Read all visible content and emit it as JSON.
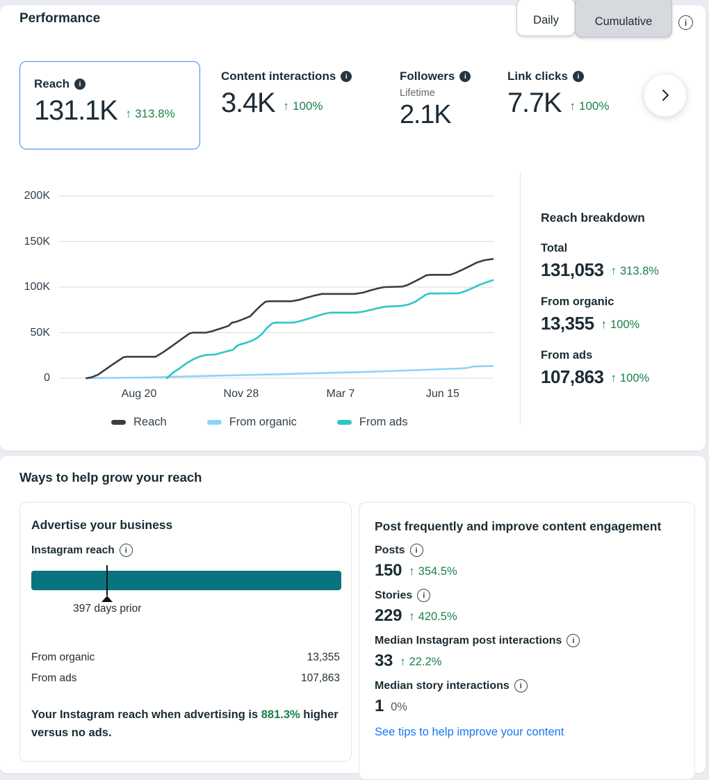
{
  "header": {
    "title": "Performance",
    "toggle": {
      "options": [
        "Daily",
        "Cumulative"
      ],
      "selected": "Cumulative"
    }
  },
  "icons": {
    "arrow_up": "↑",
    "info": "i"
  },
  "colors": {
    "positive_green": "#17824a",
    "selected_card_border": "#3e82f1",
    "link_blue": "#1877f2",
    "reach_line": "#3a3e43",
    "organic_line": "#8dd3f8",
    "ads_line": "#2cc7c6",
    "ad_bar_teal": "#097380",
    "page_background": "#e9edf2"
  },
  "metrics": {
    "cards": [
      {
        "label": "Reach",
        "value": "131.1K",
        "delta": "313.8%",
        "selected": true
      },
      {
        "label": "Content interactions",
        "value": "3.4K",
        "delta": "100%"
      },
      {
        "label": "Followers",
        "sub": "Lifetime",
        "value": "2.1K"
      },
      {
        "label": "Link clicks",
        "value": "7.7K",
        "delta": "100%"
      }
    ]
  },
  "chart_data": [
    {
      "type": "line",
      "title": "Reach over time (cumulative)",
      "values_unit": "thousands",
      "ylim": [
        0,
        200
      ],
      "grid": true,
      "legend_position": "bottom",
      "y_ticks": [
        {
          "label": "0",
          "v": 0
        },
        {
          "label": "50K",
          "v": 50
        },
        {
          "label": "100K",
          "v": 100
        },
        {
          "label": "150K",
          "v": 150
        },
        {
          "label": "200K",
          "v": 200
        }
      ],
      "x_ticks": [
        {
          "label": "Aug 20",
          "t": 0.184
        },
        {
          "label": "Nov 28",
          "t": 0.419
        },
        {
          "label": "Mar 7",
          "t": 0.648
        },
        {
          "label": "Jun 15",
          "t": 0.883
        }
      ],
      "legend": [
        "Reach",
        "From organic",
        "From ads"
      ],
      "draw_order": [
        1,
        2,
        0
      ],
      "series": [
        {
          "name": "Reach",
          "color": "#3a3e43",
          "points": [
            [
              0.063,
              0
            ],
            [
              0.075,
              1
            ],
            [
              0.09,
              4
            ],
            [
              0.12,
              14
            ],
            [
              0.148,
              23
            ],
            [
              0.155,
              23.5
            ],
            [
              0.222,
              23.5
            ],
            [
              0.238,
              28
            ],
            [
              0.262,
              36
            ],
            [
              0.285,
              44
            ],
            [
              0.3,
              49
            ],
            [
              0.308,
              50
            ],
            [
              0.338,
              50
            ],
            [
              0.352,
              51.5
            ],
            [
              0.375,
              55
            ],
            [
              0.39,
              57.5
            ],
            [
              0.398,
              61
            ],
            [
              0.408,
              62
            ],
            [
              0.425,
              65
            ],
            [
              0.44,
              68
            ],
            [
              0.452,
              74
            ],
            [
              0.465,
              80
            ],
            [
              0.475,
              84
            ],
            [
              0.485,
              84.5
            ],
            [
              0.535,
              84.5
            ],
            [
              0.553,
              86
            ],
            [
              0.57,
              88.5
            ],
            [
              0.59,
              91
            ],
            [
              0.605,
              92.5
            ],
            [
              0.68,
              92.5
            ],
            [
              0.7,
              94
            ],
            [
              0.717,
              96.5
            ],
            [
              0.733,
              98.5
            ],
            [
              0.748,
              100
            ],
            [
              0.79,
              100.5
            ],
            [
              0.803,
              102.5
            ],
            [
              0.818,
              106
            ],
            [
              0.83,
              109
            ],
            [
              0.845,
              113
            ],
            [
              0.855,
              113.5
            ],
            [
              0.9,
              113.5
            ],
            [
              0.912,
              115.5
            ],
            [
              0.928,
              119
            ],
            [
              0.945,
              123
            ],
            [
              0.962,
              127
            ],
            [
              0.978,
              129.5
            ],
            [
              1,
              131
            ]
          ]
        },
        {
          "name": "From organic",
          "color": "#8dd3f8",
          "points": [
            [
              0.063,
              0
            ],
            [
              0.2,
              0.8
            ],
            [
              0.3,
              2
            ],
            [
              0.4,
              3.2
            ],
            [
              0.5,
              4.3
            ],
            [
              0.6,
              5.6
            ],
            [
              0.68,
              6.6
            ],
            [
              0.75,
              7.6
            ],
            [
              0.82,
              8.8
            ],
            [
              0.88,
              9.9
            ],
            [
              0.925,
              10.8
            ],
            [
              0.94,
              11.2
            ],
            [
              0.952,
              12.8
            ],
            [
              0.975,
              13.1
            ],
            [
              1,
              13.4
            ]
          ]
        },
        {
          "name": "From ads",
          "color": "#2cc7c6",
          "points": [
            [
              0.248,
              0
            ],
            [
              0.262,
              6
            ],
            [
              0.278,
              11
            ],
            [
              0.295,
              17
            ],
            [
              0.31,
              21
            ],
            [
              0.325,
              24
            ],
            [
              0.338,
              25.5
            ],
            [
              0.36,
              26
            ],
            [
              0.375,
              28
            ],
            [
              0.39,
              30
            ],
            [
              0.4,
              31
            ],
            [
              0.408,
              35
            ],
            [
              0.413,
              36.5
            ],
            [
              0.428,
              38.5
            ],
            [
              0.443,
              41
            ],
            [
              0.455,
              44
            ],
            [
              0.468,
              49
            ],
            [
              0.478,
              55
            ],
            [
              0.49,
              60
            ],
            [
              0.497,
              61
            ],
            [
              0.54,
              61
            ],
            [
              0.557,
              63
            ],
            [
              0.575,
              65.5
            ],
            [
              0.595,
              68.5
            ],
            [
              0.613,
              71
            ],
            [
              0.625,
              72
            ],
            [
              0.682,
              72
            ],
            [
              0.7,
              73
            ],
            [
              0.717,
              75
            ],
            [
              0.735,
              77
            ],
            [
              0.75,
              78.5
            ],
            [
              0.79,
              79.5
            ],
            [
              0.805,
              81
            ],
            [
              0.82,
              84
            ],
            [
              0.833,
              88
            ],
            [
              0.845,
              92
            ],
            [
              0.852,
              93
            ],
            [
              0.92,
              93.2
            ],
            [
              0.935,
              95.5
            ],
            [
              0.952,
              99
            ],
            [
              0.968,
              102.5
            ],
            [
              0.985,
              105.5
            ],
            [
              1,
              107.8
            ]
          ]
        }
      ]
    },
    {
      "type": "bar-marker",
      "label": "Instagram reach",
      "bar_color": "#097380",
      "marker_t": 0.245,
      "marker_label": "397 days prior"
    }
  ],
  "breakdown": {
    "title": "Reach breakdown",
    "items": [
      {
        "label": "Total",
        "value": "131,053",
        "delta": "313.8%"
      },
      {
        "label": "From organic",
        "value": "13,355",
        "delta": "100%"
      },
      {
        "label": "From ads",
        "value": "107,863",
        "delta": "100%"
      }
    ]
  },
  "growth": {
    "title": "Ways to help grow your reach",
    "advertise": {
      "title": "Advertise your business",
      "metric_label": "Instagram reach",
      "marker_label": "397 days prior",
      "rows": [
        {
          "label": "From organic",
          "value": "13,355"
        },
        {
          "label": "From ads",
          "value": "107,863"
        }
      ],
      "summary_prefix": "Your Instagram reach when advertising is ",
      "summary_highlight": "881.3%",
      "summary_suffix": " higher versus no ads."
    },
    "post": {
      "title": "Post frequently and improve content engagement",
      "stats": [
        {
          "label": "Posts",
          "value": "150",
          "delta": "354.5%",
          "positive": true
        },
        {
          "label": "Stories",
          "value": "229",
          "delta": "420.5%",
          "positive": true
        },
        {
          "label": "Median Instagram post interactions",
          "value": "33",
          "delta": "22.2%",
          "positive": true
        },
        {
          "label": "Median story interactions",
          "value": "1",
          "delta": "0%",
          "positive": false
        }
      ],
      "link": "See tips to help improve your content"
    }
  }
}
